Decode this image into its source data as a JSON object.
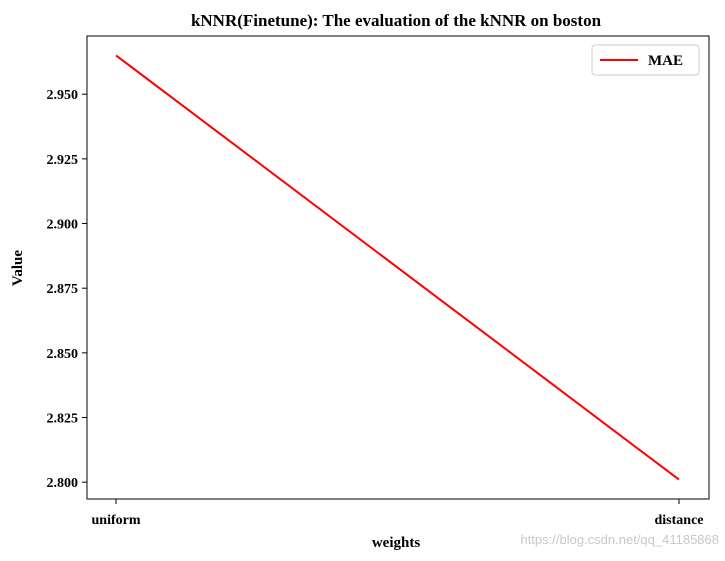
{
  "chart_data": {
    "type": "line",
    "title": "kNNR(Finetune): The evaluation of the kNNR on boston",
    "xlabel": "weights",
    "ylabel": "Value",
    "categories": [
      "uniform",
      "distance"
    ],
    "series": [
      {
        "name": "MAE",
        "values": [
          2.965,
          2.801
        ],
        "color": "#ff0000"
      }
    ],
    "ylim": [
      2.7935,
      2.9725
    ],
    "yticks": [
      2.8,
      2.825,
      2.85,
      2.875,
      2.9,
      2.925,
      2.95
    ],
    "ytick_labels": [
      "2.800",
      "2.825",
      "2.850",
      "2.875",
      "2.900",
      "2.925",
      "2.950"
    ],
    "grid": false,
    "legend_position": "top-right"
  },
  "watermark": "https://blog.csdn.net/qq_41185868"
}
